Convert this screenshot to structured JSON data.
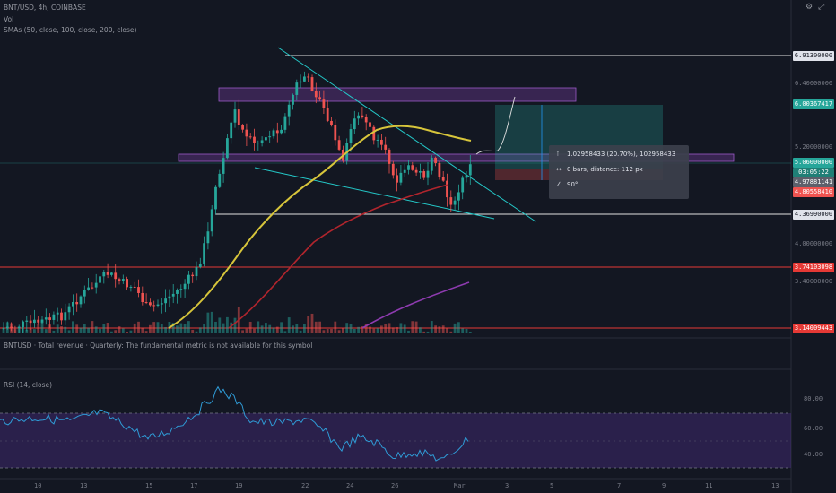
{
  "legend": {
    "symbol_line": "BNT/USD, 4h, COINBASE",
    "vol": "Vol",
    "sma": "SMAs (50, close, 100, close, 200, close)",
    "fundamental": "BNTUSD · Total revenue · Quarterly: The fundamental metric is not available for this symbol",
    "rsi": "RSI (14, close)"
  },
  "price_axis": {
    "ticks": [
      "6.40000000",
      "5.20000000",
      "4.00000000",
      "3.40000000"
    ],
    "tags": [
      {
        "label": "6.91300000",
        "style": "white"
      },
      {
        "label": "6.00367417",
        "style": "teal"
      },
      {
        "label": "5.06000000",
        "style": "teal"
      },
      {
        "label": "03:05:22",
        "style": "teal-dark"
      },
      {
        "label": "4.97881141",
        "style": "gray"
      },
      {
        "label": "4.80558410",
        "style": "red"
      },
      {
        "label": "4.36990000",
        "style": "white"
      },
      {
        "label": "3.74103098",
        "style": "red"
      },
      {
        "label": "3.14009443",
        "style": "red"
      }
    ]
  },
  "rsi_axis": {
    "ticks": [
      "80.00",
      "60.00",
      "40.00"
    ]
  },
  "time_axis": {
    "ticks": [
      "10",
      "13",
      "15",
      "17",
      "19",
      "22",
      "24",
      "26",
      "Mar",
      "3",
      "5",
      "7",
      "9",
      "11",
      "13"
    ]
  },
  "measure": {
    "price_change": "1.02958433 (20.70%), 102958433",
    "bars_distance": "0 bars, distance: 112 px",
    "angle": "90°"
  },
  "icons": [
    "settings-icon",
    "expand-icon",
    "measure-price-icon",
    "measure-time-icon",
    "measure-angle-icon"
  ],
  "colors": {
    "background": "#131722",
    "candle_up": "#26a69a",
    "candle_down": "#ef5350",
    "sma50": "#d7c53b",
    "sma100": "#b1252d",
    "sma200": "#8e3bb0",
    "zone": "#7e3fa8",
    "support_line": "#e53935",
    "trend_line": "#24c8c8",
    "rsi_line": "#2f9bd6",
    "rsi_band": "#3f2a5e"
  }
}
